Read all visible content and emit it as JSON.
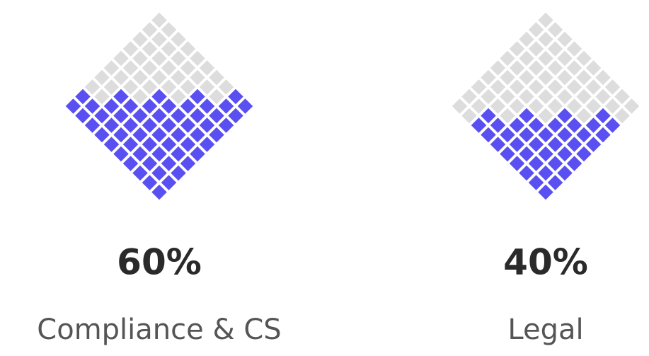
{
  "chart_data": {
    "type": "waffle",
    "categories": [
      "Compliance & CS",
      "Legal"
    ],
    "values": [
      60,
      40
    ],
    "value_labels": [
      "60%",
      "40%"
    ],
    "color": "#5a4ff0",
    "empty_color": "#dddddd"
  }
}
